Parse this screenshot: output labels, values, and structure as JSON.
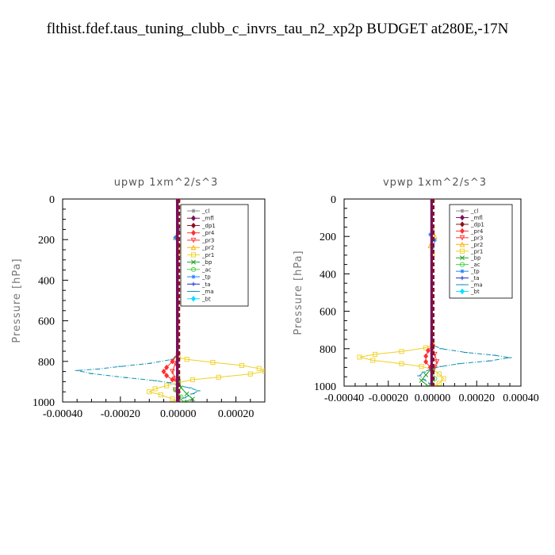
{
  "title": "flthist.fdef.taus_tuning_clubb_c_invrs_tau_n2_xp2p  BUDGET at280E,-17N",
  "legend_labels": [
    "_cl",
    "_mfl",
    "_dp1",
    "_pr4",
    "_pr3",
    "_pr2",
    "_pr1",
    "_bp",
    "_ac",
    "_tp",
    "_ta",
    "_ma",
    "_bt"
  ],
  "series_styles": [
    {
      "name": "_cl",
      "color": "#888888",
      "marker": "star"
    },
    {
      "name": "_mfl",
      "color": "#7a0f5a",
      "marker": "diamond"
    },
    {
      "name": "_dp1",
      "color": "#8b1020",
      "marker": "diamond"
    },
    {
      "name": "_pr4",
      "color": "#ff3030",
      "marker": "diamond"
    },
    {
      "name": "_pr3",
      "color": "#ff3030",
      "marker": "tri-down"
    },
    {
      "name": "_pr2",
      "color": "#ffb000",
      "marker": "tri-up"
    },
    {
      "name": "_pr1",
      "color": "#f0d020",
      "marker": "square"
    },
    {
      "name": "_bp",
      "color": "#20a020",
      "marker": "x"
    },
    {
      "name": "_ac",
      "color": "#40d040",
      "marker": "circle"
    },
    {
      "name": "_tp",
      "color": "#2080ff",
      "marker": "star"
    },
    {
      "name": "_ta",
      "color": "#2030c0",
      "marker": "plus"
    },
    {
      "name": "_ma",
      "color": "#1090b0",
      "marker": "dash"
    },
    {
      "name": "_bt",
      "color": "#00e0ff",
      "marker": "diamond"
    }
  ],
  "chart_data": [
    {
      "type": "line",
      "title": "upwp   1xm^2/s^3",
      "ylabel": "Pressure [hPa]",
      "xlim": [
        -0.0004,
        0.0003
      ],
      "ylim": [
        1000,
        0
      ],
      "xticks": [
        -0.0004,
        -0.0002,
        0.0,
        0.0002
      ],
      "xtick_labels": [
        "-0.00040",
        "-0.00020",
        "0.00000",
        "0.00020"
      ],
      "yticks": [
        0,
        200,
        400,
        600,
        800,
        1000
      ],
      "ytick_labels": [
        "0",
        "200",
        "400",
        "600",
        "800",
        "1000"
      ],
      "legend": "inside-right",
      "series": [
        {
          "name": "_ma",
          "points": [
            [
              0,
              0
            ],
            [
              0,
              760
            ],
            [
              -2e-05,
              790
            ],
            [
              -0.0001,
              810
            ],
            [
              -0.0002,
              825
            ],
            [
              -0.00028,
              838
            ],
            [
              -0.00035,
              845
            ],
            [
              -0.0003,
              860
            ],
            [
              -0.00018,
              880
            ],
            [
              -8e-05,
              895
            ],
            [
              -3e-05,
              905
            ],
            [
              0,
              920
            ],
            [
              4e-05,
              930
            ],
            [
              7e-05,
              945
            ],
            [
              5e-05,
              960
            ],
            [
              2e-05,
              980
            ],
            [
              0,
              1000
            ]
          ]
        },
        {
          "name": "_pr1",
          "points": [
            [
              0,
              0
            ],
            [
              0,
              780
            ],
            [
              3e-05,
              790
            ],
            [
              0.00012,
              805
            ],
            [
              0.00022,
              820
            ],
            [
              0.00028,
              835
            ],
            [
              0.0003,
              848
            ],
            [
              0.00025,
              862
            ],
            [
              0.00014,
              878
            ],
            [
              5e-05,
              890
            ],
            [
              0,
              905
            ],
            [
              -4e-05,
              920
            ],
            [
              -8e-05,
              935
            ],
            [
              -0.0001,
              950
            ],
            [
              -6e-05,
              965
            ],
            [
              -2e-05,
              985
            ],
            [
              0,
              1000
            ]
          ]
        },
        {
          "name": "_pr4",
          "points": [
            [
              0,
              760
            ],
            [
              -2e-05,
              800
            ],
            [
              -4e-05,
              830
            ],
            [
              -5e-05,
              850
            ],
            [
              -4e-05,
              870
            ],
            [
              -2e-05,
              890
            ],
            [
              0,
              905
            ]
          ]
        },
        {
          "name": "_pr3",
          "points": [
            [
              0,
              770
            ],
            [
              -1e-05,
              810
            ],
            [
              -2e-05,
              850
            ],
            [
              -1e-05,
              885
            ],
            [
              0,
              900
            ],
            [
              -1e-05,
              940
            ],
            [
              0,
              960
            ]
          ]
        },
        {
          "name": "_pr2",
          "points": [
            [
              0,
              0
            ],
            [
              0,
              160
            ],
            [
              -1e-05,
              190
            ],
            [
              1e-05,
              230
            ],
            [
              0,
              270
            ],
            [
              0,
              1000
            ]
          ]
        },
        {
          "name": "_bp",
          "points": [
            [
              0,
              880
            ],
            [
              1e-05,
              930
            ],
            [
              3e-05,
              960
            ],
            [
              5e-05,
              985
            ],
            [
              2e-05,
              1000
            ]
          ]
        },
        {
          "name": "_ac",
          "points": [
            [
              0,
              900
            ],
            [
              -1e-05,
              940
            ],
            [
              1e-05,
              975
            ],
            [
              0,
              1000
            ]
          ]
        },
        {
          "name": "_tp",
          "points": [
            [
              0,
              0
            ],
            [
              0,
              150
            ],
            [
              -1e-05,
              190
            ],
            [
              0,
              230
            ],
            [
              0,
              1000
            ]
          ]
        },
        {
          "name": "_ta",
          "points": [
            [
              0,
              0
            ],
            [
              0,
              1000
            ]
          ]
        },
        {
          "name": "_dp1",
          "points": [
            [
              0,
              0
            ],
            [
              0,
              1000
            ]
          ]
        },
        {
          "name": "_mfl",
          "points": [
            [
              0,
              0
            ],
            [
              0,
              1000
            ]
          ]
        }
      ]
    },
    {
      "type": "line",
      "title": "vpwp   1xm^2/s^3",
      "ylabel": "Pressure [hPa]",
      "xlim": [
        -0.0004,
        0.0004
      ],
      "ylim": [
        1000,
        0
      ],
      "xticks": [
        -0.0004,
        -0.0002,
        0.0,
        0.0002,
        0.0004
      ],
      "xtick_labels": [
        "-0.00040",
        "-0.00020",
        "0.00000",
        "0.00020",
        "0.00040"
      ],
      "yticks": [
        0,
        200,
        400,
        600,
        800,
        1000
      ],
      "ytick_labels": [
        "0",
        "200",
        "400",
        "600",
        "800",
        "1000"
      ],
      "legend": "inside-right",
      "series": [
        {
          "name": "_ma",
          "points": [
            [
              0,
              0
            ],
            [
              0,
              780
            ],
            [
              4e-05,
              800
            ],
            [
              0.00015,
              820
            ],
            [
              0.00028,
              835
            ],
            [
              0.00035,
              848
            ],
            [
              0.00026,
              865
            ],
            [
              0.00012,
              880
            ],
            [
              4e-05,
              895
            ],
            [
              0,
              905
            ],
            [
              -4e-05,
              925
            ],
            [
              -6e-05,
              945
            ],
            [
              -4e-05,
              965
            ],
            [
              -1e-05,
              985
            ],
            [
              0,
              1000
            ]
          ]
        },
        {
          "name": "_pr1",
          "points": [
            [
              0,
              0
            ],
            [
              0,
              780
            ],
            [
              -3e-05,
              795
            ],
            [
              -0.00014,
              815
            ],
            [
              -0.00026,
              830
            ],
            [
              -0.00033,
              845
            ],
            [
              -0.00027,
              862
            ],
            [
              -0.00014,
              880
            ],
            [
              -5e-05,
              895
            ],
            [
              0,
              910
            ],
            [
              3e-05,
              935
            ],
            [
              5e-05,
              960
            ],
            [
              3e-05,
              985
            ],
            [
              0,
              1000
            ]
          ]
        },
        {
          "name": "_pr4",
          "points": [
            [
              0,
              780
            ],
            [
              -2e-05,
              810
            ],
            [
              -3e-05,
              840
            ],
            [
              -3e-05,
              870
            ],
            [
              -1e-05,
              900
            ],
            [
              0,
              920
            ]
          ]
        },
        {
          "name": "_pr3",
          "points": [
            [
              0,
              790
            ],
            [
              1e-05,
              830
            ],
            [
              2e-05,
              870
            ],
            [
              1e-05,
              900
            ],
            [
              0,
              920
            ]
          ]
        },
        {
          "name": "_pr2",
          "points": [
            [
              0,
              0
            ],
            [
              0,
              160
            ],
            [
              1e-05,
              200
            ],
            [
              -1e-05,
              250
            ],
            [
              0,
              290
            ],
            [
              0,
              1000
            ]
          ]
        },
        {
          "name": "_tp",
          "points": [
            [
              0,
              0
            ],
            [
              0,
              170
            ],
            [
              -1e-05,
              190
            ],
            [
              1e-05,
              220
            ],
            [
              0,
              260
            ],
            [
              0,
              1000
            ]
          ]
        },
        {
          "name": "_bp",
          "points": [
            [
              0,
              900
            ],
            [
              -3e-05,
              940
            ],
            [
              -5e-05,
              970
            ],
            [
              -2e-05,
              1000
            ]
          ]
        },
        {
          "name": "_ac",
          "points": [
            [
              0,
              920
            ],
            [
              1e-05,
              960
            ],
            [
              0,
              1000
            ]
          ]
        },
        {
          "name": "_ta",
          "points": [
            [
              0,
              0
            ],
            [
              0,
              1000
            ]
          ]
        },
        {
          "name": "_dp1",
          "points": [
            [
              0,
              0
            ],
            [
              0,
              1000
            ]
          ]
        },
        {
          "name": "_mfl",
          "points": [
            [
              0,
              0
            ],
            [
              0,
              1000
            ]
          ]
        }
      ]
    }
  ]
}
